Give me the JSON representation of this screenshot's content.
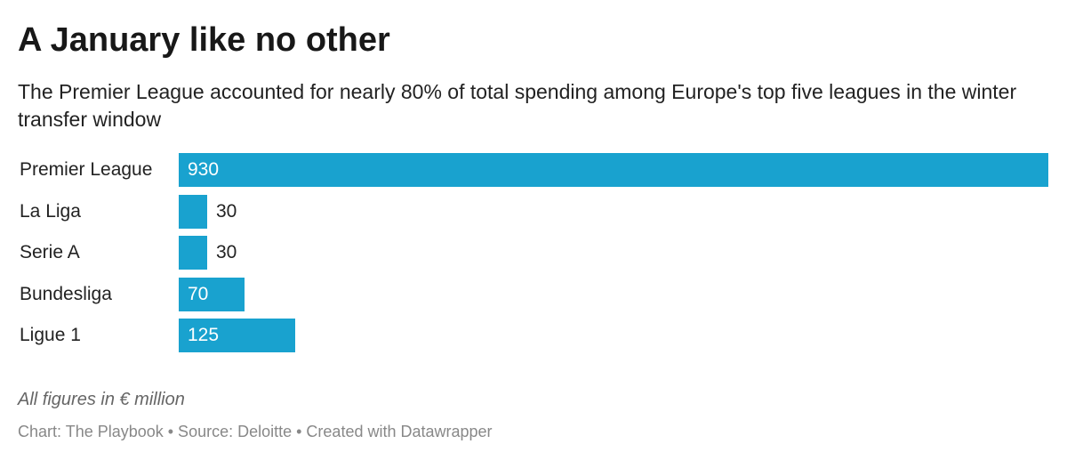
{
  "header": {
    "title": "A January like no other",
    "subtitle": "The Premier League accounted for nearly 80% of total spending among Europe's top five leagues in the winter transfer window"
  },
  "chart_data": {
    "type": "bar",
    "orientation": "horizontal",
    "title": "A January like no other",
    "subtitle": "The Premier League accounted for nearly 80% of total spending among Europe's top five leagues in the winter transfer window",
    "categories": [
      "Premier League",
      "La Liga",
      "Serie A",
      "Bundesliga",
      "Ligue 1"
    ],
    "values": [
      930,
      30,
      30,
      70,
      125
    ],
    "value_labels": [
      "930",
      "30",
      "30",
      "70",
      "125"
    ],
    "xlim": [
      0,
      930
    ],
    "grid": false,
    "color": "#19a2cf"
  },
  "notes": "All figures in € million",
  "footer": "Chart: The Playbook • Source: Deloitte • Created with Datawrapper"
}
